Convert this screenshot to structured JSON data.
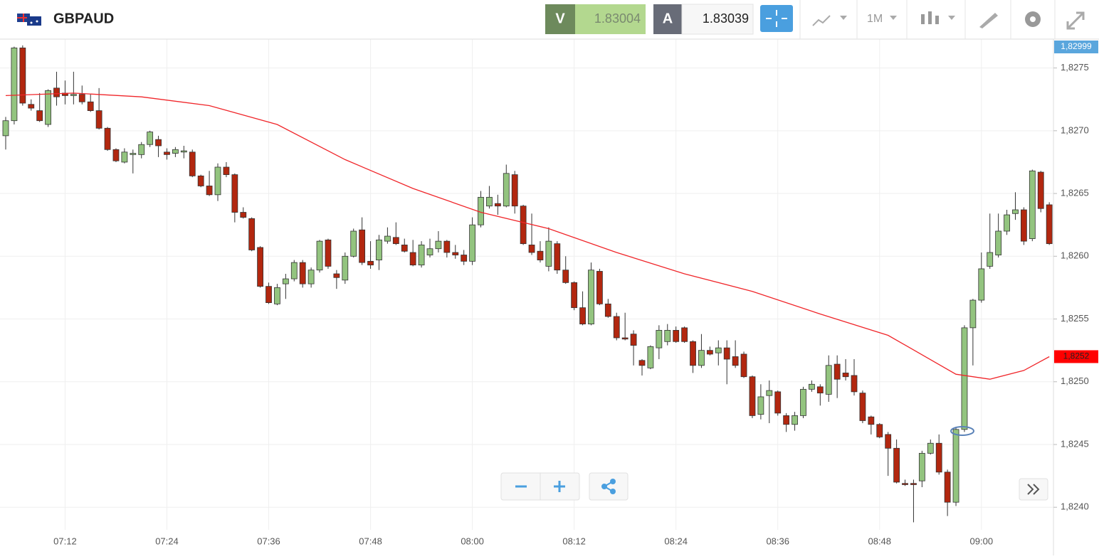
{
  "toolbar": {
    "symbol": "GBPAUD",
    "sell": {
      "label": "V",
      "price": "1.83004"
    },
    "buy": {
      "label": "A",
      "price": "1.83039"
    },
    "timeframe": "1M"
  },
  "chart_data": {
    "type": "candlestick",
    "categories": [
      null,
      null,
      null,
      null,
      null,
      null,
      null,
      "07:12",
      null,
      null,
      null,
      null,
      null,
      null,
      null,
      null,
      null,
      null,
      null,
      "07:24",
      null,
      null,
      null,
      null,
      null,
      null,
      null,
      null,
      null,
      null,
      null,
      "07:36",
      null,
      null,
      null,
      null,
      null,
      null,
      null,
      null,
      null,
      null,
      null,
      "07:48",
      null,
      null,
      null,
      null,
      null,
      null,
      null,
      null,
      null,
      null,
      null,
      "08:00",
      null,
      null,
      null,
      null,
      null,
      null,
      null,
      null,
      null,
      null,
      null,
      "08:12",
      null,
      null,
      null,
      null,
      null,
      null,
      null,
      null,
      null,
      null,
      null,
      "08:24",
      null,
      null,
      null,
      null,
      null,
      null,
      null,
      null,
      null,
      null,
      null,
      "08:36",
      null,
      null,
      null,
      null,
      null,
      null,
      null,
      null,
      null,
      null,
      null,
      "08:48",
      null,
      null,
      null,
      null,
      null,
      null,
      null,
      null,
      null,
      null,
      null,
      "09:00",
      null,
      null,
      null,
      null,
      null,
      null,
      null,
      null
    ],
    "open": [
      1.82696,
      1.82708,
      1.82766,
      1.82721,
      1.82716,
      1.82705,
      1.82734,
      1.8273,
      1.82728,
      1.82729,
      1.82723,
      1.82716,
      1.82702,
      1.82685,
      1.82675,
      1.82681,
      1.82681,
      1.82689,
      1.82693,
      1.82683,
      1.82682,
      1.82683,
      1.82683,
      1.82664,
      1.82656,
      1.82649,
      1.82671,
      1.82665,
      1.82635,
      1.8263,
      1.82607,
      1.82576,
      1.82562,
      1.82578,
      1.82582,
      1.82595,
      1.82578,
      1.82589,
      1.82613,
      1.82586,
      1.82581,
      1.826,
      1.82621,
      1.82596,
      1.82597,
      1.82612,
      1.82615,
      1.82609,
      1.82603,
      1.82593,
      1.82601,
      1.82606,
      1.82612,
      1.82603,
      1.82601,
      1.82596,
      1.82625,
      1.8264,
      1.82642,
      1.8264,
      1.82665,
      1.8264,
      1.82609,
      1.82604,
      1.82592,
      1.8261,
      1.82589,
      1.82579,
      1.82559,
      1.82546,
      1.82588,
      1.82562,
      1.82552,
      1.82535,
      1.82538,
      1.82517,
      1.82511,
      1.82527,
      1.82532,
      1.82541,
      1.82543,
      1.82532,
      1.82513,
      1.82525,
      1.82523,
      1.82527,
      1.8252,
      1.82522,
      1.82504,
      1.82474,
      1.82489,
      1.82492,
      1.82473,
      1.82466,
      1.82473,
      1.82494,
      1.82496,
      1.8249,
      1.82514,
      1.82507,
      1.82505,
      1.82491,
      1.82472,
      1.82466,
      1.82458,
      1.82447,
      1.82419,
      1.82419,
      1.82421,
      1.82443,
      1.82451,
      1.82428,
      1.82404,
      1.82462,
      1.82543,
      1.82565,
      1.82592,
      1.82601,
      1.8262,
      1.82634,
      1.82637,
      1.82614,
      1.82667,
      1.82641
    ],
    "high": [
      1.82711,
      1.82767,
      1.82768,
      1.82725,
      1.8273,
      1.82733,
      1.82747,
      1.8274,
      1.82747,
      1.82736,
      1.82729,
      1.82734,
      1.82703,
      1.82686,
      1.82686,
      1.82685,
      1.82691,
      1.827,
      1.82696,
      1.82686,
      1.82687,
      1.82688,
      1.82685,
      1.82665,
      1.82668,
      1.82674,
      1.82675,
      1.82666,
      1.82639,
      1.82631,
      1.82608,
      1.82579,
      1.82578,
      1.82586,
      1.82597,
      1.82597,
      1.82591,
      1.82613,
      1.82614,
      1.82589,
      1.82603,
      1.82622,
      1.82631,
      1.82612,
      1.82617,
      1.82623,
      1.82627,
      1.82614,
      1.82613,
      1.82612,
      1.82614,
      1.8262,
      1.82613,
      1.82609,
      1.82605,
      1.82631,
      1.82652,
      1.82656,
      1.82649,
      1.82673,
      1.82668,
      1.82641,
      1.82634,
      1.82612,
      1.82623,
      1.82612,
      1.826,
      1.8258,
      1.82572,
      1.82595,
      1.8259,
      1.82566,
      1.82555,
      1.82555,
      1.82541,
      1.82518,
      1.82529,
      1.82545,
      1.82546,
      1.82544,
      1.82544,
      1.82533,
      1.82538,
      1.82528,
      1.82533,
      1.82533,
      1.82533,
      1.82524,
      1.82505,
      1.82498,
      1.82501,
      1.82493,
      1.82475,
      1.82476,
      1.82496,
      1.82501,
      1.82498,
      1.82521,
      1.82521,
      1.82518,
      1.82518,
      1.82493,
      1.82473,
      1.82467,
      1.8246,
      1.82454,
      1.82422,
      1.82422,
      1.82445,
      1.82454,
      1.82458,
      1.8243,
      1.82464,
      1.82545,
      1.82566,
      1.82603,
      1.82634,
      1.82634,
      1.82637,
      1.82651,
      1.82639,
      1.82669,
      1.82668,
      1.82643
    ],
    "low": [
      1.82685,
      1.82705,
      1.8272,
      1.82716,
      1.82707,
      1.82703,
      1.8272,
      1.82721,
      1.82721,
      1.82721,
      1.82715,
      1.82701,
      1.82684,
      1.82675,
      1.82674,
      1.82666,
      1.82678,
      1.82687,
      1.82679,
      1.82677,
      1.82679,
      1.82678,
      1.82663,
      1.82655,
      1.82648,
      1.82644,
      1.82663,
      1.82627,
      1.8263,
      1.82604,
      1.82575,
      1.82562,
      1.82561,
      1.82566,
      1.8258,
      1.82575,
      1.82575,
      1.82587,
      1.8259,
      1.82574,
      1.82578,
      1.82599,
      1.82593,
      1.8259,
      1.82589,
      1.8261,
      1.82609,
      1.82603,
      1.82592,
      1.82591,
      1.82599,
      1.82603,
      1.82599,
      1.82598,
      1.82593,
      1.82593,
      1.82623,
      1.82638,
      1.82633,
      1.82639,
      1.82634,
      1.82609,
      1.82601,
      1.82595,
      1.82588,
      1.82586,
      1.82578,
      1.82557,
      1.82545,
      1.82545,
      1.82561,
      1.82551,
      1.82533,
      1.82533,
      1.82513,
      1.82505,
      1.8251,
      1.82518,
      1.82529,
      1.82531,
      1.82531,
      1.82507,
      1.82511,
      1.82521,
      1.82513,
      1.82498,
      1.82511,
      1.82503,
      1.82471,
      1.8247,
      1.82467,
      1.82473,
      1.8246,
      1.82461,
      1.82471,
      1.82492,
      1.82481,
      1.82484,
      1.82487,
      1.82501,
      1.82489,
      1.82467,
      1.82458,
      1.82455,
      1.82425,
      1.82419,
      1.82417,
      1.82388,
      1.82416,
      1.82442,
      1.82426,
      1.82393,
      1.82401,
      1.8246,
      1.82513,
      1.82563,
      1.8259,
      1.82599,
      1.82617,
      1.82629,
      1.82609,
      1.82612,
      1.82635,
      1.82609
    ],
    "close": [
      1.82708,
      1.82766,
      1.82722,
      1.82718,
      1.82708,
      1.82732,
      1.82727,
      1.82728,
      1.82729,
      1.82723,
      1.82716,
      1.82702,
      1.82685,
      1.82676,
      1.82683,
      1.82682,
      1.82689,
      1.82699,
      1.82688,
      1.82681,
      1.82685,
      1.82684,
      1.82664,
      1.82656,
      1.82649,
      1.82671,
      1.82665,
      1.82635,
      1.82631,
      1.82605,
      1.82576,
      1.82563,
      1.82575,
      1.82582,
      1.82595,
      1.82578,
      1.82589,
      1.82612,
      1.82592,
      1.82583,
      1.826,
      1.8262,
      1.82595,
      1.82593,
      1.82613,
      1.82616,
      1.8261,
      1.82604,
      1.82593,
      1.82609,
      1.82606,
      1.82612,
      1.82603,
      1.82601,
      1.82596,
      1.82625,
      1.82647,
      1.82647,
      1.8264,
      1.82666,
      1.8264,
      1.8261,
      1.82603,
      1.82597,
      1.82612,
      1.82589,
      1.82579,
      1.82559,
      1.82546,
      1.82589,
      1.82562,
      1.82552,
      1.82535,
      1.82534,
      1.82529,
      1.82513,
      1.82528,
      1.82541,
      1.82541,
      1.82532,
      1.82532,
      1.82513,
      1.82525,
      1.82522,
      1.82527,
      1.82518,
      1.82513,
      1.82504,
      1.82473,
      1.82488,
      1.82493,
      1.82475,
      1.82466,
      1.82473,
      1.82494,
      1.82498,
      1.82491,
      1.82513,
      1.82502,
      1.82504,
      1.82492,
      1.82469,
      1.82466,
      1.82456,
      1.82447,
      1.8242,
      1.82418,
      1.82418,
      1.82443,
      1.82451,
      1.82428,
      1.82404,
      1.82462,
      1.82543,
      1.82565,
      1.8259,
      1.82603,
      1.8262,
      1.82633,
      1.82637,
      1.82612,
      1.82668,
      1.82638,
      1.8261
    ],
    "up_color": "#93c47f",
    "down_color": "#b2270f",
    "moving_average": {
      "color": "#f0262a",
      "index": [
        0,
        8,
        16,
        24,
        32,
        40,
        48,
        56,
        64,
        72,
        80,
        88,
        96,
        104,
        112,
        116,
        120,
        123
      ],
      "values": [
        1.82728,
        1.8273,
        1.82727,
        1.8272,
        1.82705,
        1.82677,
        1.82654,
        1.82635,
        1.82622,
        1.82603,
        1.82586,
        1.82572,
        1.82554,
        1.82537,
        1.82506,
        1.82502,
        1.82509,
        1.8252
      ]
    },
    "price_labels": [
      {
        "value": 1.82999,
        "label": "1,82999",
        "color": "#5aa6dd"
      },
      {
        "value": 1.8252,
        "label": "1,8252",
        "color": "#ff0000"
      }
    ],
    "ylim": [
      1.82382,
      1.82773
    ],
    "yticks": [
      {
        "value": 1.824,
        "label": "1,8240"
      },
      {
        "value": 1.8245,
        "label": "1,8245"
      },
      {
        "value": 1.825,
        "label": "1,8250"
      },
      {
        "value": 1.8255,
        "label": "1,8255"
      },
      {
        "value": 1.826,
        "label": "1,8260"
      },
      {
        "value": 1.8265,
        "label": "1,8265"
      },
      {
        "value": 1.827,
        "label": "1,8270"
      },
      {
        "value": 1.8275,
        "label": "1,8275"
      }
    ],
    "grid": true
  }
}
